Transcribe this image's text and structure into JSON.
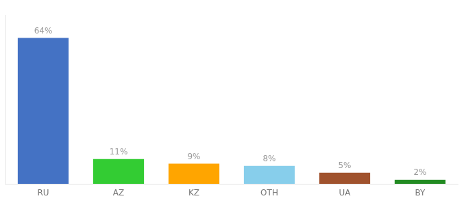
{
  "chart_data": {
    "type": "bar",
    "categories": [
      "RU",
      "AZ",
      "KZ",
      "OTH",
      "UA",
      "BY"
    ],
    "values": [
      64,
      11,
      9,
      8,
      5,
      2
    ],
    "value_labels": [
      "64%",
      "11%",
      "9%",
      "8%",
      "5%",
      "2%"
    ],
    "colors": [
      "#4472C4",
      "#33CC33",
      "#FFA500",
      "#87CEEB",
      "#A0522D",
      "#228B22"
    ],
    "ylim": [
      0,
      74
    ],
    "grid": false,
    "legend": false,
    "data_labels": true,
    "tick_labels": "x"
  }
}
